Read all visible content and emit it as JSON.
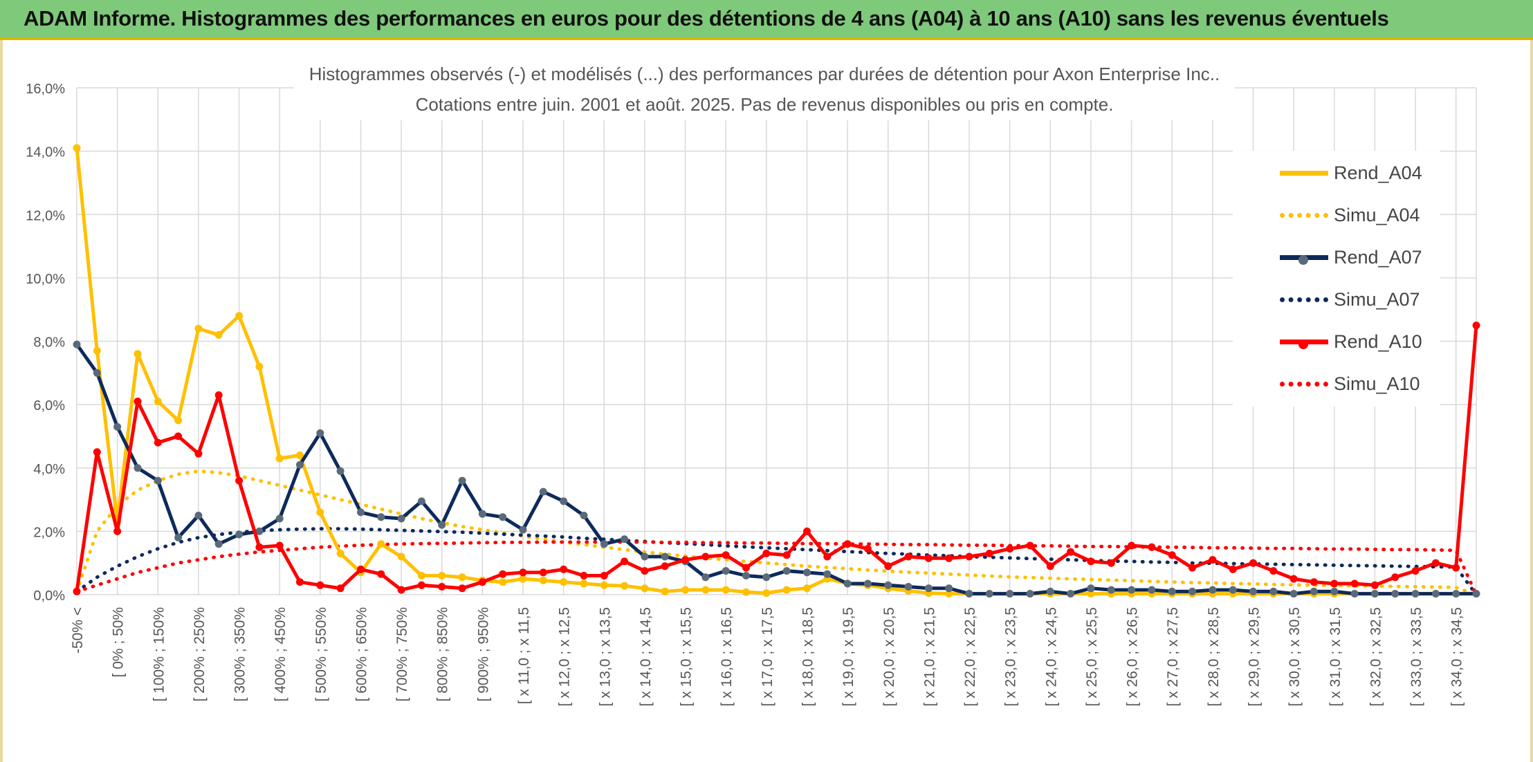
{
  "banner": {
    "title": "ADAM Informe. Histogrammes des performances en euros pour des détentions de 4 ans (A04) à 10 ans (A10) sans les revenus éventuels"
  },
  "colors": {
    "a04": "#ffc000",
    "a07": "#0e2a5c",
    "a10": "#ff0000",
    "grid": "#d9d9d9",
    "banner": "#7fc97a"
  },
  "chart_data": {
    "type": "line",
    "title": "Histogrammes observés (-) et modélisés (...) des performances par durées de détention pour Axon Enterprise Inc..",
    "subtitle": "Cotations entre juin. 2001 et août. 2025. Pas de revenus disponibles ou pris en compte.",
    "ylim": [
      0,
      16
    ],
    "y_ticks": [
      "0,0%",
      "2,0%",
      "4,0%",
      "6,0%",
      "8,0%",
      "10,0%",
      "12,0%",
      "14,0%",
      "16,0%"
    ],
    "grid": true,
    "legend_position": "right",
    "x_tick_labels": [
      "-50% <",
      "[ 0% ; 50%",
      "[ 100% ; 150%",
      "[ 200% ; 250%",
      "[ 300% ; 350%",
      "[ 400% ; 450%",
      "[ 500% ; 550%",
      "[ 600% ; 650%",
      "[ 700% ; 750%",
      "[ 800% ; 850%",
      "[ 900% ; 950%",
      "[ x 11,0 ; x 11,5",
      "[ x 12,0 ; x 12,5",
      "[ x 13,0 ; x 13,5",
      "[ x 14,0 ; x 14,5",
      "[ x 15,0 ; x 15,5",
      "[ x 16,0 ; x 16,5",
      "[ x 17,0 ; x 17,5",
      "[ x 18,0 ; x 18,5",
      "[ x 19,0 ; x 19,5",
      "[ x 20,0 ; x 20,5",
      "[ x 21,0 ; x 21,5",
      "[ x 22,0 ; x 22,5",
      "[ x 23,0 ; x 23,5",
      "[ x 24,0 ; x 24,5",
      "[ x 25,0 ; x 25,5",
      "[ x 26,0 ; x 26,5",
      "[ x 27,0 ; x 27,5",
      "[ x 28,0 ; x 28,5",
      "[ x 29,0 ; x 29,5",
      "[ x 30,0 ; x 30,5",
      "[ x 31,0 ; x 31,5",
      "[ x 32,0 ; x 32,5",
      "[ x 33,0 ; x 33,5",
      "[ x 34,0 ; x 34,5"
    ],
    "category_count": 70,
    "series": [
      {
        "name": "Rend_A04",
        "style": "solid",
        "color": "#ffc000",
        "values": [
          14.1,
          7.7,
          2.3,
          7.6,
          6.1,
          5.5,
          8.4,
          8.2,
          8.8,
          7.2,
          4.3,
          4.4,
          2.6,
          1.3,
          0.7,
          1.6,
          1.2,
          0.6,
          0.6,
          0.55,
          0.45,
          0.4,
          0.5,
          0.45,
          0.4,
          0.35,
          0.3,
          0.28,
          0.2,
          0.1,
          0.15,
          0.15,
          0.15,
          0.08,
          0.05,
          0.15,
          0.2,
          0.5,
          0.35,
          0.3,
          0.2,
          0.12,
          0.05,
          0.03,
          0.03,
          0.03,
          0.03,
          0.03,
          0.03,
          0.03,
          0.03,
          0.03,
          0.03,
          0.03,
          0.03,
          0.03,
          0.03,
          0.03,
          0.03,
          0.03,
          0.03,
          0.03,
          0.03,
          0.03,
          0.03,
          0.03,
          0.03,
          0.03,
          0.03,
          0.03
        ]
      },
      {
        "name": "Simu_A04",
        "style": "dotted",
        "color": "#ffc000",
        "values": [
          0.1,
          2.0,
          2.8,
          3.3,
          3.6,
          3.8,
          3.9,
          3.85,
          3.75,
          3.6,
          3.45,
          3.3,
          3.15,
          3.0,
          2.85,
          2.7,
          2.55,
          2.4,
          2.27,
          2.15,
          2.05,
          1.95,
          1.85,
          1.75,
          1.66,
          1.58,
          1.5,
          1.42,
          1.35,
          1.28,
          1.22,
          1.16,
          1.1,
          1.05,
          1.0,
          0.95,
          0.9,
          0.86,
          0.82,
          0.78,
          0.74,
          0.71,
          0.68,
          0.65,
          0.62,
          0.59,
          0.56,
          0.54,
          0.52,
          0.5,
          0.48,
          0.46,
          0.44,
          0.42,
          0.4,
          0.38,
          0.37,
          0.35,
          0.34,
          0.32,
          0.31,
          0.3,
          0.29,
          0.28,
          0.27,
          0.26,
          0.25,
          0.24,
          0.23,
          0.0
        ]
      },
      {
        "name": "Rend_A07",
        "style": "solid",
        "color": "#0e2a5c",
        "values": [
          7.9,
          7.0,
          5.3,
          4.0,
          3.6,
          1.8,
          2.5,
          1.6,
          1.9,
          2.0,
          2.4,
          4.1,
          5.1,
          3.9,
          2.6,
          2.45,
          2.4,
          2.95,
          2.2,
          3.6,
          2.55,
          2.45,
          2.05,
          3.25,
          2.95,
          2.5,
          1.6,
          1.75,
          1.2,
          1.2,
          1.05,
          0.55,
          0.75,
          0.6,
          0.55,
          0.75,
          0.7,
          0.65,
          0.35,
          0.35,
          0.3,
          0.25,
          0.2,
          0.2,
          0.03,
          0.03,
          0.03,
          0.03,
          0.1,
          0.03,
          0.2,
          0.15,
          0.15,
          0.15,
          0.1,
          0.1,
          0.15,
          0.15,
          0.1,
          0.1,
          0.03,
          0.1,
          0.1,
          0.03,
          0.03,
          0.03,
          0.03,
          0.03,
          0.03,
          0.03
        ]
      },
      {
        "name": "Simu_A07",
        "style": "dotted",
        "color": "#0e2a5c",
        "values": [
          0.1,
          0.55,
          0.9,
          1.2,
          1.45,
          1.65,
          1.8,
          1.9,
          1.97,
          2.02,
          2.05,
          2.07,
          2.08,
          2.08,
          2.07,
          2.05,
          2.03,
          2.01,
          1.99,
          1.97,
          1.94,
          1.91,
          1.88,
          1.85,
          1.82,
          1.78,
          1.75,
          1.71,
          1.68,
          1.64,
          1.61,
          1.58,
          1.54,
          1.51,
          1.48,
          1.45,
          1.42,
          1.39,
          1.36,
          1.33,
          1.3,
          1.28,
          1.25,
          1.23,
          1.2,
          1.18,
          1.16,
          1.14,
          1.12,
          1.1,
          1.08,
          1.06,
          1.05,
          1.03,
          1.02,
          1.0,
          0.99,
          0.98,
          0.97,
          0.96,
          0.95,
          0.94,
          0.93,
          0.92,
          0.91,
          0.9,
          0.89,
          0.88,
          0.87,
          0.0
        ]
      },
      {
        "name": "Rend_A10",
        "style": "solid",
        "color": "#ff0000",
        "values": [
          0.1,
          4.5,
          2.0,
          6.1,
          4.8,
          5.0,
          4.45,
          6.3,
          3.6,
          1.5,
          1.55,
          0.4,
          0.3,
          0.2,
          0.8,
          0.65,
          0.15,
          0.3,
          0.25,
          0.2,
          0.4,
          0.65,
          0.7,
          0.7,
          0.8,
          0.6,
          0.6,
          1.05,
          0.75,
          0.9,
          1.1,
          1.2,
          1.25,
          0.85,
          1.3,
          1.25,
          2.0,
          1.2,
          1.6,
          1.45,
          0.9,
          1.2,
          1.15,
          1.15,
          1.2,
          1.3,
          1.45,
          1.55,
          0.9,
          1.35,
          1.05,
          1.0,
          1.55,
          1.5,
          1.25,
          0.85,
          1.1,
          0.8,
          1.0,
          0.75,
          0.5,
          0.4,
          0.35,
          0.35,
          0.3,
          0.55,
          0.75,
          1.0,
          0.85,
          8.5
        ]
      },
      {
        "name": "Simu_A10",
        "style": "dotted",
        "color": "#ff0000",
        "values": [
          0.1,
          0.3,
          0.5,
          0.7,
          0.85,
          1.0,
          1.1,
          1.2,
          1.28,
          1.35,
          1.4,
          1.45,
          1.5,
          1.53,
          1.56,
          1.58,
          1.6,
          1.61,
          1.62,
          1.63,
          1.64,
          1.65,
          1.65,
          1.66,
          1.66,
          1.66,
          1.66,
          1.66,
          1.66,
          1.65,
          1.65,
          1.64,
          1.64,
          1.63,
          1.63,
          1.62,
          1.61,
          1.61,
          1.6,
          1.6,
          1.59,
          1.58,
          1.58,
          1.57,
          1.56,
          1.56,
          1.55,
          1.54,
          1.54,
          1.53,
          1.52,
          1.52,
          1.51,
          1.5,
          1.5,
          1.49,
          1.48,
          1.48,
          1.47,
          1.46,
          1.46,
          1.45,
          1.44,
          1.44,
          1.43,
          1.42,
          1.42,
          1.41,
          1.4,
          0.0
        ]
      }
    ]
  }
}
